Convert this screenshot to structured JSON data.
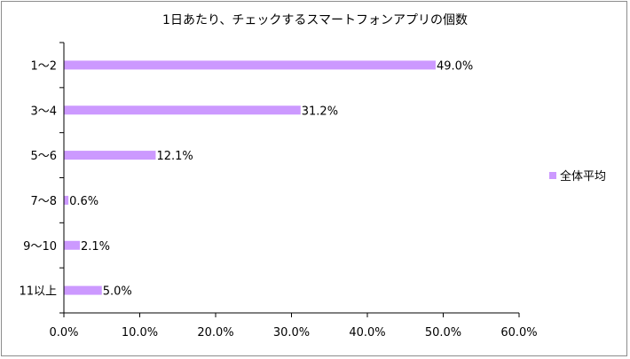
{
  "chart_data": {
    "type": "bar",
    "orientation": "horizontal",
    "title": "1日あたり、チェックするスマートフォンアプリの個数",
    "categories": [
      "1～2",
      "3～4",
      "5～6",
      "7～8",
      "9～10",
      "11以上"
    ],
    "series": [
      {
        "name": "全体平均",
        "values": [
          49.0,
          31.2,
          12.1,
          0.6,
          2.1,
          5.0
        ],
        "labels": [
          "49.0%",
          "31.2%",
          "12.1%",
          "0.6%",
          "2.1%",
          "5.0%"
        ],
        "color": "#cc99ff"
      }
    ],
    "xlim": [
      0,
      60
    ],
    "xticks": [
      0,
      10,
      20,
      30,
      40,
      50,
      60
    ],
    "xtick_labels": [
      "0.0%",
      "10.0%",
      "20.0%",
      "30.0%",
      "40.0%",
      "50.0%",
      "60.0%"
    ],
    "grid": false,
    "legend": "right"
  }
}
